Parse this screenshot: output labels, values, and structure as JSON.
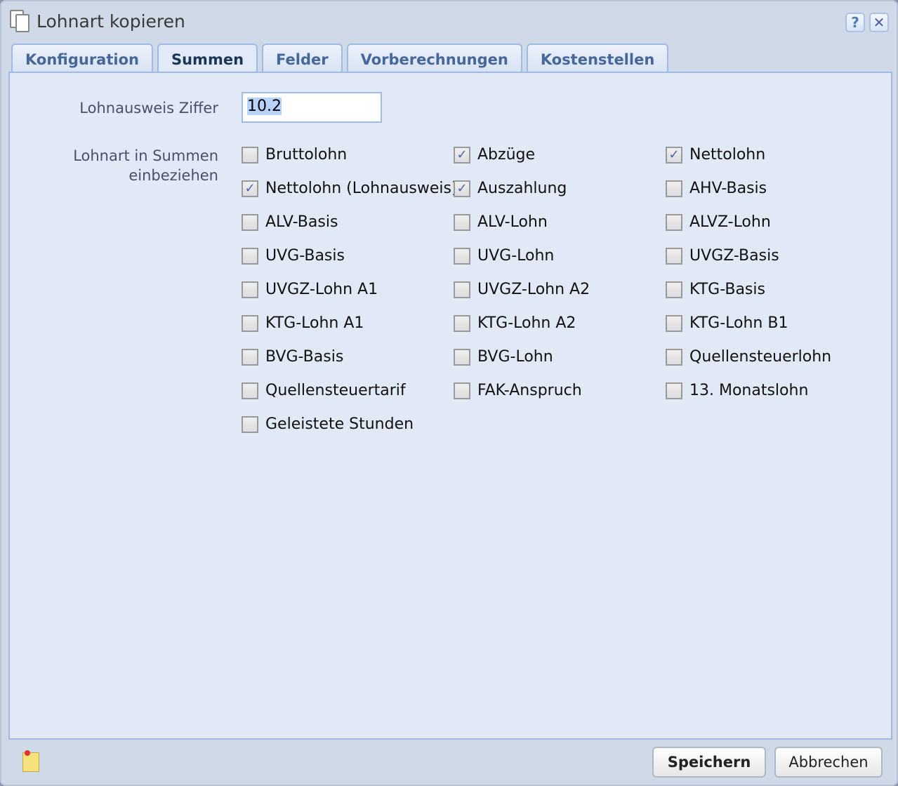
{
  "window": {
    "title": "Lohnart kopieren",
    "help_label": "?",
    "close_label": "✕"
  },
  "tabs": [
    {
      "label": "Konfiguration",
      "active": false
    },
    {
      "label": "Summen",
      "active": true
    },
    {
      "label": "Felder",
      "active": false
    },
    {
      "label": "Vorberechnungen",
      "active": false
    },
    {
      "label": "Kostenstellen",
      "active": false
    }
  ],
  "form": {
    "ziffer_label": "Lohnausweis Ziffer",
    "ziffer_value": "10.2",
    "summen_label_1": "Lohnart in Summen",
    "summen_label_2": "einbeziehen"
  },
  "checkboxes": [
    {
      "label": "Bruttolohn",
      "checked": false
    },
    {
      "label": "Abzüge",
      "checked": true
    },
    {
      "label": "Nettolohn",
      "checked": true
    },
    {
      "label": "Nettolohn (Lohnausweis)",
      "checked": true
    },
    {
      "label": "Auszahlung",
      "checked": true
    },
    {
      "label": "AHV-Basis",
      "checked": false
    },
    {
      "label": "ALV-Basis",
      "checked": false
    },
    {
      "label": "ALV-Lohn",
      "checked": false
    },
    {
      "label": "ALVZ-Lohn",
      "checked": false
    },
    {
      "label": "UVG-Basis",
      "checked": false
    },
    {
      "label": "UVG-Lohn",
      "checked": false
    },
    {
      "label": "UVGZ-Basis",
      "checked": false
    },
    {
      "label": "UVGZ-Lohn A1",
      "checked": false
    },
    {
      "label": "UVGZ-Lohn A2",
      "checked": false
    },
    {
      "label": "KTG-Basis",
      "checked": false
    },
    {
      "label": "KTG-Lohn A1",
      "checked": false
    },
    {
      "label": "KTG-Lohn A2",
      "checked": false
    },
    {
      "label": "KTG-Lohn B1",
      "checked": false
    },
    {
      "label": "BVG-Basis",
      "checked": false
    },
    {
      "label": "BVG-Lohn",
      "checked": false
    },
    {
      "label": "Quellensteuerlohn",
      "checked": false
    },
    {
      "label": "Quellensteuertarif",
      "checked": false
    },
    {
      "label": "FAK-Anspruch",
      "checked": false
    },
    {
      "label": "13. Monatslohn",
      "checked": false
    },
    {
      "label": "Geleistete Stunden",
      "checked": false
    }
  ],
  "footer": {
    "save_label": "Speichern",
    "cancel_label": "Abbrechen",
    "note_icon": "sticky-note-icon"
  }
}
